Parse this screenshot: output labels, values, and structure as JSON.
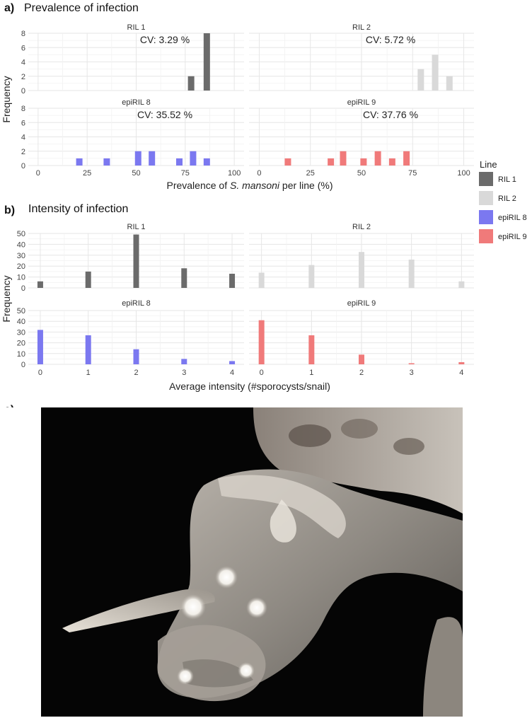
{
  "figure": {
    "panel_a": {
      "letter": "a)",
      "title": "Prevalence of infection"
    },
    "panel_b": {
      "letter": "b)",
      "title": "Intensity of infection"
    },
    "panel_c": {
      "letter": "c)"
    }
  },
  "legend": {
    "title": "Line",
    "items": [
      {
        "label": "RIL 1",
        "color": "#6b6b6b"
      },
      {
        "label": "RIL 2",
        "color": "#d9d9d9"
      },
      {
        "label": "epiRIL 8",
        "color": "#7b78f0"
      },
      {
        "label": "epiRIL 9",
        "color": "#f07a7a"
      }
    ]
  },
  "chart_data": [
    {
      "type": "bar",
      "panel": "a",
      "xlabel_parts": [
        "Prevalence of ",
        "S. mansoni",
        " per line (%)"
      ],
      "ylabel": "Frequency",
      "xlim": [
        -5,
        105
      ],
      "ylim": [
        0,
        8
      ],
      "xticks": [
        0,
        25,
        50,
        75,
        100
      ],
      "yticks": [
        0,
        2,
        4,
        6,
        8
      ],
      "grid": true,
      "facets": [
        {
          "title": "RIL 1",
          "cv": "CV: 3.29 %",
          "color": "#6b6b6b",
          "points": [
            [
              78,
              2
            ],
            [
              86,
              8
            ]
          ]
        },
        {
          "title": "RIL 2",
          "cv": "CV: 5.72 %",
          "color": "#d9d9d9",
          "points": [
            [
              79,
              3
            ],
            [
              86,
              5
            ],
            [
              93,
              2
            ]
          ]
        },
        {
          "title": "epiRIL 8",
          "cv": "CV: 35.52 %",
          "color": "#7b78f0",
          "points": [
            [
              21,
              1
            ],
            [
              35,
              1
            ],
            [
              51,
              2
            ],
            [
              58,
              2
            ],
            [
              72,
              1
            ],
            [
              79,
              2
            ],
            [
              86,
              1
            ]
          ]
        },
        {
          "title": "epiRIL 9",
          "cv": "CV: 37.76 %",
          "color": "#f07a7a",
          "points": [
            [
              14,
              1
            ],
            [
              35,
              1
            ],
            [
              41,
              2
            ],
            [
              51,
              1
            ],
            [
              58,
              2
            ],
            [
              65,
              1
            ],
            [
              72,
              2
            ]
          ]
        }
      ]
    },
    {
      "type": "bar",
      "panel": "b",
      "xlabel": "Average intensity  (#sporocysts/snail)",
      "ylabel": "Frequency",
      "xlim": [
        -0.25,
        4.25
      ],
      "ylim": [
        0,
        50
      ],
      "xticks": [
        0,
        1,
        2,
        3,
        4
      ],
      "yticks": [
        0,
        10,
        20,
        30,
        40,
        50
      ],
      "grid": true,
      "facets": [
        {
          "title": "RIL 1",
          "color": "#6b6b6b",
          "points": [
            [
              0,
              6
            ],
            [
              1,
              15
            ],
            [
              2,
              49
            ],
            [
              3,
              18
            ],
            [
              4,
              13
            ]
          ]
        },
        {
          "title": "RIL 2",
          "color": "#d9d9d9",
          "points": [
            [
              0,
              14
            ],
            [
              1,
              21
            ],
            [
              2,
              33
            ],
            [
              3,
              26
            ],
            [
              4,
              6
            ]
          ]
        },
        {
          "title": "epiRIL 8",
          "color": "#7b78f0",
          "points": [
            [
              0,
              32
            ],
            [
              1,
              27
            ],
            [
              2,
              14
            ],
            [
              3,
              5
            ],
            [
              4,
              3
            ]
          ]
        },
        {
          "title": "epiRIL 9",
          "color": "#f07a7a",
          "points": [
            [
              0,
              41
            ],
            [
              1,
              27
            ],
            [
              2,
              9
            ],
            [
              3,
              1
            ],
            [
              4,
              2
            ]
          ]
        }
      ]
    }
  ]
}
